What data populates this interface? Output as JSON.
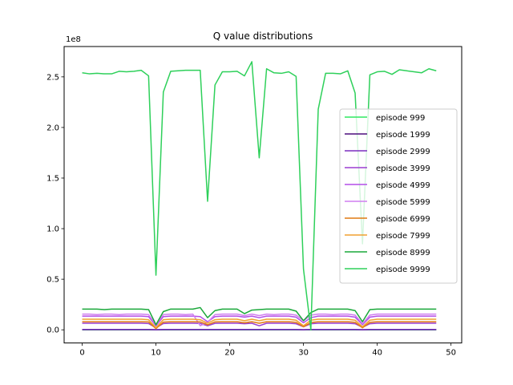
{
  "chart_data": {
    "type": "line",
    "title": "Q value distributions",
    "xlabel": "",
    "ylabel": "",
    "y_offset_label": "1e8",
    "xlim": [
      -2.45,
      51.45
    ],
    "ylim": [
      -0.13,
      2.8
    ],
    "x_ticks": [
      0,
      10,
      20,
      30,
      40,
      50
    ],
    "x_tick_labels": [
      "0",
      "10",
      "20",
      "30",
      "40",
      "50"
    ],
    "y_ticks": [
      0.0,
      0.5,
      1.0,
      1.5,
      2.0,
      2.5
    ],
    "y_tick_labels": [
      "0.0",
      "0.5",
      "1.0",
      "1.5",
      "2.0",
      "2.5"
    ],
    "legend_position": "center-right",
    "grid": false,
    "x": [
      0,
      1,
      2,
      3,
      4,
      5,
      6,
      7,
      8,
      9,
      10,
      11,
      12,
      13,
      14,
      15,
      16,
      17,
      18,
      19,
      20,
      21,
      22,
      23,
      24,
      25,
      26,
      27,
      28,
      29,
      30,
      31,
      32,
      33,
      34,
      35,
      36,
      37,
      38,
      39,
      40,
      41,
      42,
      43,
      44,
      45,
      46,
      47,
      48
    ],
    "series": [
      {
        "name": "episode 999",
        "color": "#2ee860",
        "values": [
          0.0,
          0.0,
          0.0,
          0.0,
          0.0,
          0.0,
          0.0,
          0.0,
          0.0,
          0.0,
          0.0,
          0.0,
          0.0,
          0.0,
          0.0,
          0.0,
          0.0,
          0.0,
          0.0,
          0.0,
          0.0,
          0.0,
          0.0,
          0.0,
          0.0,
          0.0,
          0.0,
          0.0,
          0.0,
          0.0,
          0.0,
          0.0,
          0.0,
          0.0,
          0.0,
          0.0,
          0.0,
          0.0,
          0.0,
          0.0,
          0.0,
          0.0,
          0.0,
          0.0,
          0.0,
          0.0,
          0.0,
          0.0,
          0.0
        ]
      },
      {
        "name": "episode 1999",
        "color": "#4b0e7d",
        "values": [
          0.002,
          0.002,
          0.002,
          0.002,
          0.002,
          0.002,
          0.002,
          0.002,
          0.002,
          0.002,
          0.001,
          0.002,
          0.002,
          0.002,
          0.002,
          0.002,
          0.002,
          0.002,
          0.002,
          0.002,
          0.002,
          0.002,
          0.002,
          0.002,
          0.002,
          0.002,
          0.002,
          0.002,
          0.002,
          0.002,
          0.001,
          0.002,
          0.002,
          0.002,
          0.002,
          0.002,
          0.002,
          0.002,
          0.001,
          0.002,
          0.002,
          0.002,
          0.002,
          0.002,
          0.002,
          0.002,
          0.002,
          0.002,
          0.002
        ]
      },
      {
        "name": "episode 2999",
        "color": "#7b2fbf",
        "values": [
          0.004,
          0.004,
          0.004,
          0.004,
          0.004,
          0.004,
          0.004,
          0.004,
          0.004,
          0.004,
          0.002,
          0.004,
          0.004,
          0.004,
          0.004,
          0.004,
          0.004,
          0.004,
          0.004,
          0.004,
          0.004,
          0.004,
          0.004,
          0.004,
          0.004,
          0.004,
          0.004,
          0.004,
          0.004,
          0.004,
          0.002,
          0.004,
          0.004,
          0.004,
          0.004,
          0.004,
          0.004,
          0.004,
          0.002,
          0.004,
          0.004,
          0.004,
          0.004,
          0.004,
          0.004,
          0.004,
          0.004,
          0.004,
          0.004
        ]
      },
      {
        "name": "episode 3999",
        "color": "#9b3fd0",
        "values": [
          0.065,
          0.065,
          0.065,
          0.065,
          0.065,
          0.065,
          0.065,
          0.065,
          0.065,
          0.062,
          0.02,
          0.062,
          0.065,
          0.065,
          0.065,
          0.065,
          0.063,
          0.04,
          0.064,
          0.065,
          0.065,
          0.065,
          0.06,
          0.065,
          0.04,
          0.065,
          0.065,
          0.065,
          0.065,
          0.06,
          0.03,
          0.06,
          0.065,
          0.065,
          0.065,
          0.065,
          0.065,
          0.06,
          0.025,
          0.06,
          0.065,
          0.065,
          0.065,
          0.065,
          0.065,
          0.065,
          0.065,
          0.065,
          0.065
        ]
      },
      {
        "name": "episode 4999",
        "color": "#b44ee8",
        "values": [
          0.135,
          0.135,
          0.135,
          0.135,
          0.135,
          0.135,
          0.135,
          0.135,
          0.135,
          0.13,
          0.04,
          0.13,
          0.135,
          0.135,
          0.135,
          0.135,
          0.13,
          0.08,
          0.13,
          0.135,
          0.135,
          0.135,
          0.125,
          0.135,
          0.12,
          0.135,
          0.135,
          0.135,
          0.135,
          0.125,
          0.07,
          0.12,
          0.135,
          0.135,
          0.135,
          0.135,
          0.135,
          0.125,
          0.05,
          0.125,
          0.135,
          0.135,
          0.135,
          0.135,
          0.135,
          0.135,
          0.135,
          0.135,
          0.135
        ]
      },
      {
        "name": "episode 5999",
        "color": "#d07ef0",
        "values": [
          0.155,
          0.155,
          0.15,
          0.155,
          0.155,
          0.15,
          0.155,
          0.155,
          0.155,
          0.15,
          0.05,
          0.15,
          0.155,
          0.155,
          0.15,
          0.155,
          0.04,
          0.075,
          0.15,
          0.155,
          0.155,
          0.155,
          0.14,
          0.155,
          0.14,
          0.155,
          0.15,
          0.155,
          0.155,
          0.145,
          0.09,
          0.145,
          0.155,
          0.155,
          0.15,
          0.155,
          0.155,
          0.145,
          0.06,
          0.145,
          0.155,
          0.155,
          0.155,
          0.155,
          0.155,
          0.155,
          0.155,
          0.155,
          0.155
        ]
      },
      {
        "name": "episode 6999",
        "color": "#e07a12",
        "values": [
          0.08,
          0.08,
          0.08,
          0.08,
          0.08,
          0.08,
          0.08,
          0.08,
          0.08,
          0.078,
          0.012,
          0.076,
          0.08,
          0.08,
          0.08,
          0.08,
          0.078,
          0.05,
          0.078,
          0.08,
          0.08,
          0.08,
          0.07,
          0.08,
          0.065,
          0.08,
          0.08,
          0.08,
          0.08,
          0.074,
          0.03,
          0.072,
          0.08,
          0.08,
          0.08,
          0.08,
          0.08,
          0.074,
          0.02,
          0.074,
          0.08,
          0.08,
          0.08,
          0.08,
          0.08,
          0.08,
          0.08,
          0.08,
          0.08
        ]
      },
      {
        "name": "episode 7999",
        "color": "#f0a030",
        "values": [
          0.105,
          0.105,
          0.105,
          0.105,
          0.105,
          0.105,
          0.105,
          0.105,
          0.105,
          0.1,
          0.02,
          0.1,
          0.105,
          0.105,
          0.105,
          0.105,
          0.1,
          0.065,
          0.1,
          0.105,
          0.105,
          0.105,
          0.09,
          0.105,
          0.09,
          0.105,
          0.105,
          0.105,
          0.105,
          0.095,
          0.04,
          0.095,
          0.105,
          0.105,
          0.105,
          0.105,
          0.105,
          0.095,
          0.03,
          0.095,
          0.105,
          0.105,
          0.105,
          0.105,
          0.105,
          0.105,
          0.105,
          0.105,
          0.105
        ]
      },
      {
        "name": "episode 8999",
        "color": "#1aa83a",
        "values": [
          0.205,
          0.205,
          0.205,
          0.2,
          0.205,
          0.205,
          0.205,
          0.205,
          0.205,
          0.2,
          0.05,
          0.18,
          0.205,
          0.205,
          0.205,
          0.205,
          0.22,
          0.12,
          0.19,
          0.205,
          0.205,
          0.205,
          0.16,
          0.195,
          0.2,
          0.205,
          0.205,
          0.205,
          0.205,
          0.185,
          0.09,
          0.17,
          0.205,
          0.205,
          0.205,
          0.205,
          0.205,
          0.19,
          0.08,
          0.2,
          0.205,
          0.205,
          0.205,
          0.205,
          0.205,
          0.205,
          0.205,
          0.205,
          0.205
        ]
      },
      {
        "name": "episode 9999",
        "color": "#2ed05a",
        "values": [
          2.54,
          2.53,
          2.535,
          2.53,
          2.53,
          2.555,
          2.55,
          2.555,
          2.565,
          2.51,
          0.54,
          2.35,
          2.555,
          2.56,
          2.565,
          2.565,
          2.565,
          1.27,
          2.42,
          2.55,
          2.55,
          2.555,
          2.51,
          2.65,
          1.7,
          2.58,
          2.54,
          2.535,
          2.55,
          2.505,
          0.6,
          0.0,
          2.18,
          2.535,
          2.535,
          2.53,
          2.56,
          2.34,
          0.85,
          2.52,
          2.55,
          2.555,
          2.525,
          2.57,
          2.56,
          2.55,
          2.54,
          2.58,
          2.56
        ]
      }
    ]
  }
}
